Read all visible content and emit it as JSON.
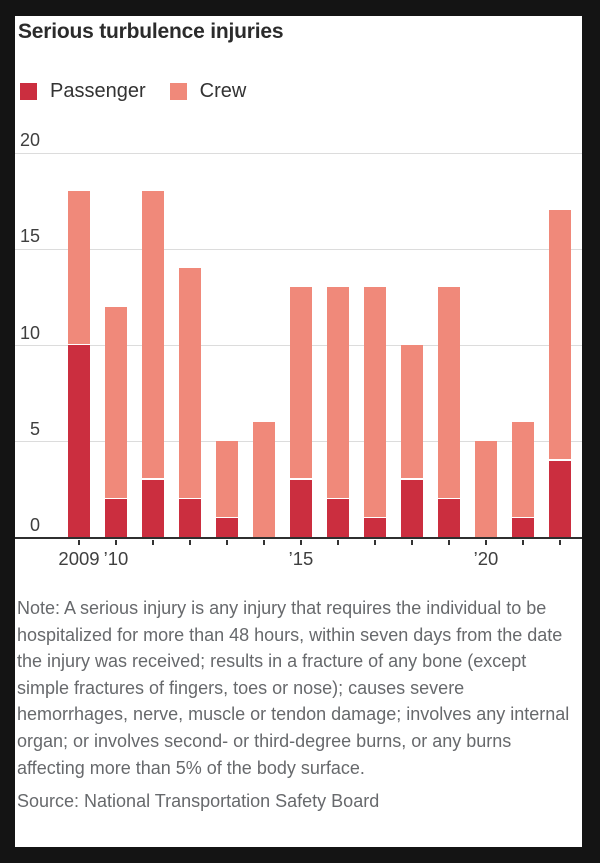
{
  "title": "Serious turbulence injuries",
  "legend": [
    {
      "label": "Passenger",
      "color": "#cb2e3f"
    },
    {
      "label": "Crew",
      "color": "#f0897a"
    }
  ],
  "chart_data": {
    "type": "bar",
    "stacked": true,
    "title": "Serious turbulence injuries",
    "categories": [
      "2009",
      "2010",
      "2011",
      "2012",
      "2013",
      "2014",
      "2015",
      "2016",
      "2017",
      "2018",
      "2019",
      "2020",
      "2021",
      "2022"
    ],
    "series": [
      {
        "name": "Passenger",
        "color": "#cb2e3f",
        "values": [
          10,
          2,
          3,
          2,
          1,
          0,
          3,
          2,
          1,
          3,
          2,
          0,
          1,
          4
        ]
      },
      {
        "name": "Crew",
        "color": "#f0897a",
        "values": [
          8,
          10,
          15,
          12,
          4,
          6,
          10,
          11,
          12,
          7,
          11,
          5,
          5,
          13
        ]
      }
    ],
    "totals": [
      18,
      12,
      18,
      14,
      5,
      6,
      13,
      13,
      13,
      10,
      13,
      5,
      6,
      17
    ],
    "xlabel": "",
    "ylabel": "",
    "ylim": [
      0,
      20
    ],
    "yticks": [
      0,
      5,
      10,
      15,
      20
    ],
    "xtick_labels": [
      {
        "index": 0,
        "label": "2009"
      },
      {
        "index": 1,
        "label": "’10"
      },
      {
        "index": 6,
        "label": "’15"
      },
      {
        "index": 11,
        "label": "’20"
      }
    ],
    "grid": true,
    "legend_position": "top-left"
  },
  "note": "Note: A serious injury is any injury that requires the individual to be hospitalized for more than 48 hours, within seven days from the date the injury was received; results in a fracture of any bone (except simple fractures of fingers, toes or nose); causes severe hemorrhages, nerve, muscle or tendon damage; involves any internal organ; or involves second- or third-degree burns, or any burns affecting more than 5% of the body surface.",
  "source": "Source: National Transportation Safety Board"
}
